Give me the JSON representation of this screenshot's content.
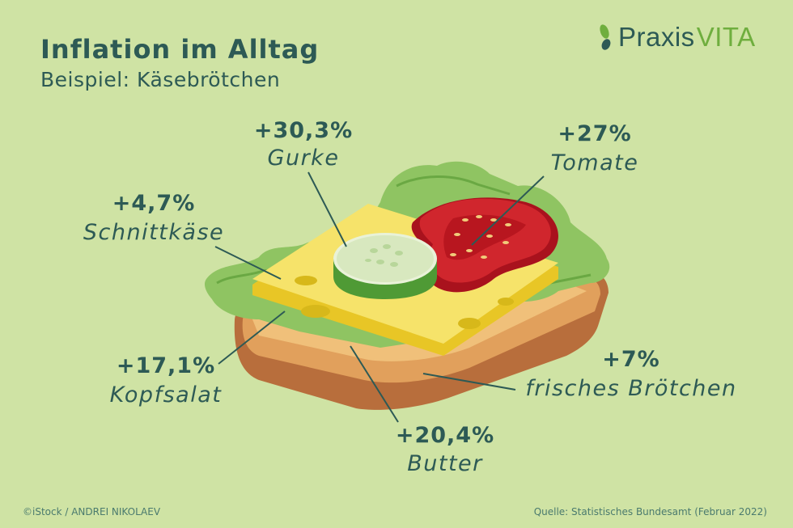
{
  "header": {
    "title": "Inflation im Alltag",
    "subtitle": "Beispiel: Käsebrötchen"
  },
  "logo": {
    "part1": "Praxis",
    "part2": "VITA",
    "icon": "leaf-icon"
  },
  "items": [
    {
      "pct": "+30,3%",
      "label": "Gurke"
    },
    {
      "pct": "+27%",
      "label": "Tomate"
    },
    {
      "pct": "+4,7%",
      "label": "Schnittkäse"
    },
    {
      "pct": "+17,1%",
      "label": "Kopfsalat"
    },
    {
      "pct": "+7%",
      "label": "frisches Brötchen"
    },
    {
      "pct": "+20,4%",
      "label": "Butter"
    }
  ],
  "footer": {
    "credit": "©iStock / ANDREI NIKOLAEV",
    "source": "Quelle: Statistisches Bundesamt (Februar 2022)"
  },
  "colors": {
    "background": "#cfe3a4",
    "text": "#2d5a55",
    "accent": "#6fae3e"
  }
}
